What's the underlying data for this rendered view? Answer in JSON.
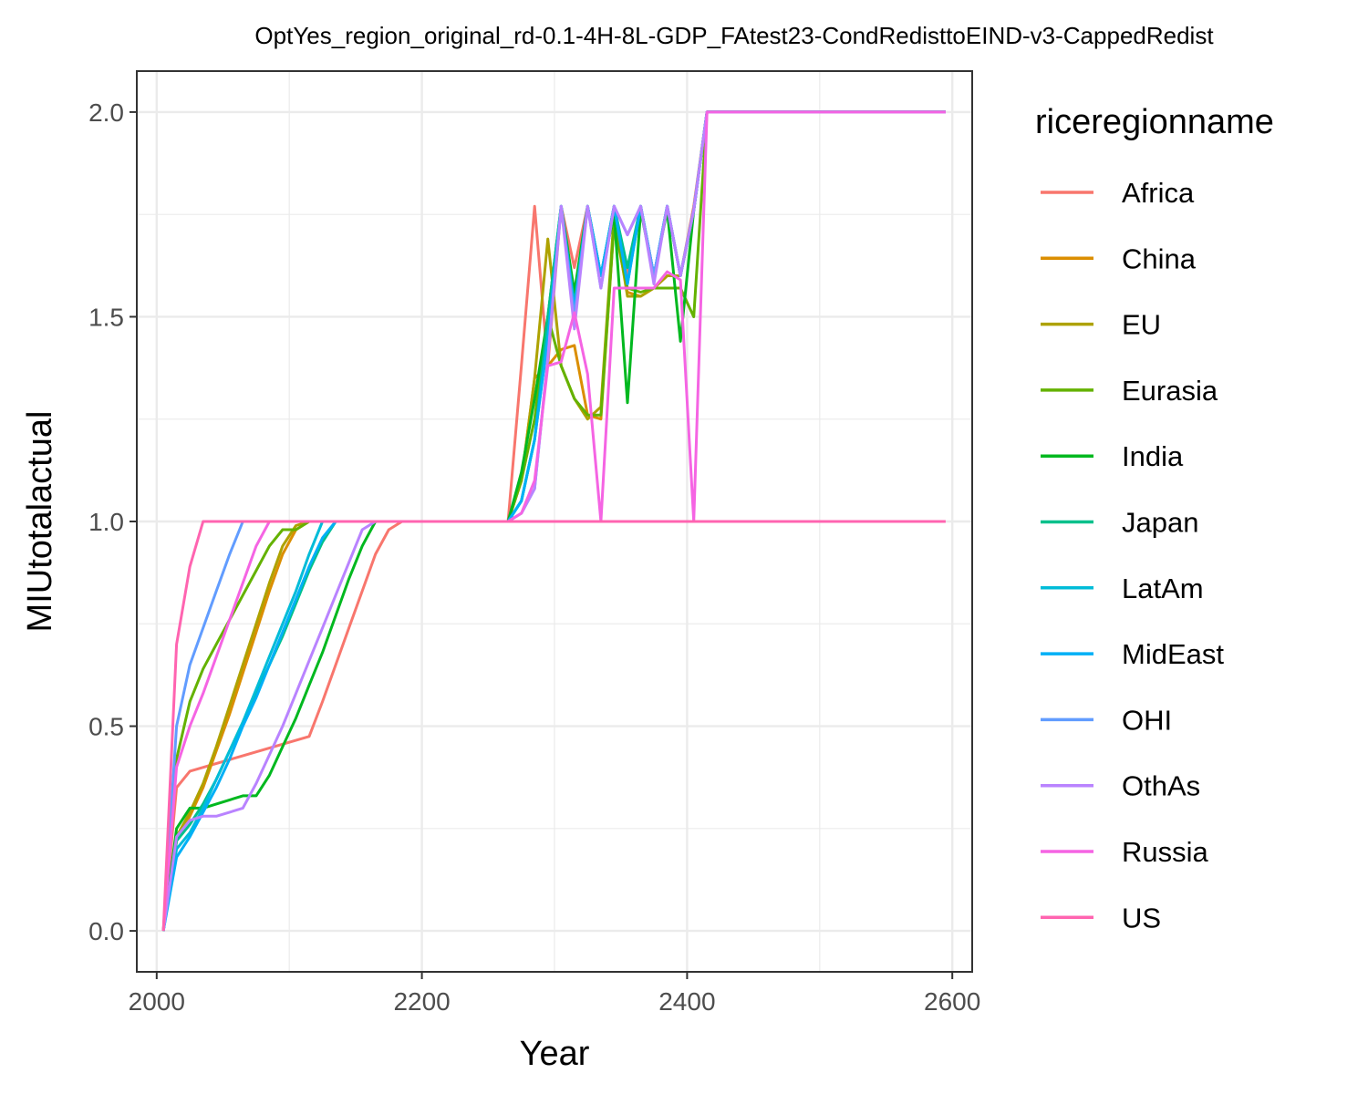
{
  "chart_data": {
    "type": "line",
    "title": "OptYes_region_original_rd-0.1-4H-8L-GDP_FAtest23-CondRedisttoEIND-v3-CappedRedist",
    "xlabel": "Year",
    "ylabel": "MIUtotalactual",
    "xlim": [
      1985,
      2615
    ],
    "ylim": [
      -0.1,
      2.1
    ],
    "x_ticks": [
      2000,
      2200,
      2400,
      2600
    ],
    "x_tick_labels": [
      "2000",
      "2200",
      "2400",
      "2600"
    ],
    "y_ticks": [
      0.0,
      0.5,
      1.0,
      1.5,
      2.0
    ],
    "y_tick_labels": [
      "0.0",
      "0.5",
      "1.0",
      "1.5",
      "2.0"
    ],
    "grid": true,
    "legend_title": "riceregionname",
    "legend_position": "right",
    "series": [
      {
        "name": "Africa",
        "color": "#F8766D",
        "x": [
          2005,
          2015,
          2025,
          2115,
          2125,
          2135,
          2145,
          2155,
          2165,
          2175,
          2185,
          2195,
          2265,
          2275,
          2285,
          2295,
          2305,
          2315,
          2325,
          2335,
          2345,
          2355,
          2365,
          2375,
          2385,
          2395,
          2405,
          2415,
          2595
        ],
        "y": [
          0.0,
          0.35,
          0.39,
          0.475,
          0.56,
          0.65,
          0.74,
          0.83,
          0.92,
          0.98,
          1.0,
          1.0,
          1.0,
          1.38,
          1.77,
          1.38,
          1.77,
          1.62,
          1.77,
          1.6,
          1.77,
          1.6,
          1.77,
          1.6,
          1.77,
          1.6,
          1.77,
          2.0,
          2.0
        ]
      },
      {
        "name": "China",
        "color": "#DB8E00",
        "x": [
          2005,
          2015,
          2025,
          2035,
          2045,
          2055,
          2065,
          2075,
          2085,
          2095,
          2105,
          2115,
          2125,
          2195,
          2265,
          2275,
          2285,
          2295,
          2305,
          2315,
          2325,
          2335,
          2345,
          2355,
          2365,
          2375,
          2385,
          2395,
          2405,
          2415,
          2595
        ],
        "y": [
          0.0,
          0.22,
          0.28,
          0.35,
          0.44,
          0.53,
          0.63,
          0.73,
          0.83,
          0.92,
          0.98,
          1.0,
          1.0,
          1.0,
          1.0,
          1.1,
          1.35,
          1.38,
          1.42,
          1.43,
          1.26,
          1.25,
          1.73,
          1.56,
          1.55,
          1.57,
          1.6,
          1.6,
          1.76,
          2.0,
          2.0
        ]
      },
      {
        "name": "EU",
        "color": "#AEA200",
        "x": [
          2005,
          2015,
          2025,
          2035,
          2045,
          2055,
          2065,
          2075,
          2085,
          2095,
          2105,
          2115,
          2195,
          2265,
          2275,
          2285,
          2295,
          2305,
          2315,
          2325,
          2335,
          2345,
          2355,
          2365,
          2375,
          2385,
          2395,
          2405,
          2415,
          2595
        ],
        "y": [
          0.0,
          0.23,
          0.29,
          0.36,
          0.45,
          0.55,
          0.65,
          0.75,
          0.85,
          0.94,
          0.99,
          1.0,
          1.0,
          1.0,
          1.1,
          1.35,
          1.69,
          1.38,
          1.3,
          1.25,
          1.28,
          1.75,
          1.55,
          1.55,
          1.57,
          1.6,
          1.6,
          1.76,
          2.0,
          2.0
        ]
      },
      {
        "name": "Eurasia",
        "color": "#64B200",
        "x": [
          2005,
          2015,
          2025,
          2035,
          2045,
          2055,
          2065,
          2075,
          2085,
          2095,
          2105,
          2115,
          2195,
          2265,
          2275,
          2285,
          2295,
          2305,
          2315,
          2325,
          2335,
          2345,
          2355,
          2365,
          2375,
          2385,
          2395,
          2405,
          2415,
          2595
        ],
        "y": [
          0.0,
          0.42,
          0.56,
          0.64,
          0.7,
          0.76,
          0.82,
          0.88,
          0.94,
          0.98,
          0.98,
          1.0,
          1.0,
          1.0,
          1.1,
          1.25,
          1.5,
          1.38,
          1.3,
          1.26,
          1.26,
          1.73,
          1.57,
          1.56,
          1.57,
          1.57,
          1.57,
          1.5,
          2.0,
          2.0
        ]
      },
      {
        "name": "India",
        "color": "#00B81F",
        "x": [
          2005,
          2015,
          2025,
          2035,
          2045,
          2055,
          2065,
          2075,
          2085,
          2095,
          2105,
          2115,
          2125,
          2135,
          2145,
          2155,
          2165,
          2175,
          2195,
          2265,
          2275,
          2285,
          2295,
          2305,
          2315,
          2325,
          2335,
          2345,
          2355,
          2365,
          2375,
          2385,
          2395,
          2405,
          2415,
          2595
        ],
        "y": [
          0.0,
          0.25,
          0.3,
          0.3,
          0.31,
          0.32,
          0.33,
          0.33,
          0.38,
          0.45,
          0.52,
          0.6,
          0.68,
          0.77,
          0.86,
          0.94,
          1.0,
          1.0,
          1.0,
          1.0,
          1.12,
          1.3,
          1.5,
          1.77,
          1.56,
          1.77,
          1.6,
          1.75,
          1.29,
          1.76,
          1.6,
          1.76,
          1.44,
          1.76,
          2.0,
          2.0
        ]
      },
      {
        "name": "Japan",
        "color": "#00C08B",
        "x": [
          2005,
          2015,
          2025,
          2035,
          2045,
          2055,
          2065,
          2075,
          2085,
          2095,
          2105,
          2115,
          2125,
          2135,
          2195,
          2265,
          2275,
          2285,
          2295,
          2305,
          2315,
          2325,
          2335,
          2345,
          2355,
          2365,
          2375,
          2385,
          2395,
          2405,
          2415,
          2595
        ],
        "y": [
          0.0,
          0.22,
          0.26,
          0.31,
          0.37,
          0.44,
          0.51,
          0.58,
          0.65,
          0.72,
          0.8,
          0.88,
          0.95,
          1.0,
          1.0,
          1.0,
          1.05,
          1.2,
          1.5,
          1.77,
          1.53,
          1.77,
          1.6,
          1.77,
          1.62,
          1.77,
          1.6,
          1.77,
          1.6,
          1.76,
          2.0,
          2.0
        ]
      },
      {
        "name": "LatAm",
        "color": "#00BCD8",
        "x": [
          2005,
          2015,
          2025,
          2035,
          2045,
          2055,
          2065,
          2075,
          2085,
          2095,
          2105,
          2115,
          2125,
          2135,
          2195,
          2265,
          2275,
          2285,
          2295,
          2305,
          2315,
          2325,
          2335,
          2345,
          2355,
          2365,
          2375,
          2385,
          2395,
          2405,
          2415,
          2595
        ],
        "y": [
          0.0,
          0.2,
          0.24,
          0.3,
          0.37,
          0.44,
          0.51,
          0.59,
          0.67,
          0.75,
          0.83,
          0.92,
          1.0,
          1.0,
          1.0,
          1.0,
          1.05,
          1.2,
          1.45,
          1.77,
          1.5,
          1.77,
          1.6,
          1.77,
          1.58,
          1.77,
          1.6,
          1.77,
          1.6,
          1.76,
          2.0,
          2.0
        ]
      },
      {
        "name": "MidEast",
        "color": "#00B0F6",
        "x": [
          2005,
          2015,
          2025,
          2035,
          2045,
          2055,
          2065,
          2075,
          2085,
          2095,
          2105,
          2115,
          2125,
          2135,
          2145,
          2195,
          2265,
          2275,
          2285,
          2295,
          2305,
          2315,
          2325,
          2335,
          2345,
          2355,
          2365,
          2375,
          2385,
          2395,
          2405,
          2415,
          2595
        ],
        "y": [
          0.0,
          0.18,
          0.23,
          0.29,
          0.35,
          0.42,
          0.5,
          0.57,
          0.65,
          0.73,
          0.81,
          0.89,
          0.96,
          1.0,
          1.0,
          1.0,
          1.0,
          1.05,
          1.2,
          1.45,
          1.77,
          1.52,
          1.77,
          1.6,
          1.77,
          1.58,
          1.77,
          1.6,
          1.77,
          1.6,
          1.76,
          2.0,
          2.0
        ]
      },
      {
        "name": "OHI",
        "color": "#619CFF",
        "x": [
          2005,
          2015,
          2025,
          2035,
          2045,
          2055,
          2065,
          2075,
          2195,
          2265,
          2275,
          2285,
          2295,
          2305,
          2315,
          2325,
          2335,
          2345,
          2355,
          2365,
          2375,
          2385,
          2395,
          2405,
          2415,
          2595
        ],
        "y": [
          0.0,
          0.5,
          0.65,
          0.74,
          0.83,
          0.92,
          1.0,
          1.0,
          1.0,
          1.0,
          1.02,
          1.08,
          1.4,
          1.77,
          1.5,
          1.77,
          1.57,
          1.77,
          1.7,
          1.77,
          1.6,
          1.77,
          1.6,
          1.76,
          2.0,
          2.0
        ]
      },
      {
        "name": "OthAs",
        "color": "#B983FF",
        "x": [
          2005,
          2015,
          2025,
          2035,
          2045,
          2055,
          2065,
          2075,
          2085,
          2095,
          2105,
          2115,
          2125,
          2135,
          2145,
          2155,
          2165,
          2195,
          2265,
          2275,
          2285,
          2295,
          2305,
          2315,
          2325,
          2335,
          2345,
          2355,
          2365,
          2375,
          2385,
          2395,
          2405,
          2415,
          2595
        ],
        "y": [
          0.0,
          0.23,
          0.27,
          0.28,
          0.28,
          0.29,
          0.3,
          0.36,
          0.43,
          0.5,
          0.58,
          0.66,
          0.74,
          0.82,
          0.9,
          0.98,
          1.0,
          1.0,
          1.0,
          1.02,
          1.08,
          1.4,
          1.77,
          1.47,
          1.77,
          1.57,
          1.77,
          1.7,
          1.77,
          1.58,
          1.77,
          1.6,
          1.76,
          2.0,
          2.0
        ]
      },
      {
        "name": "Russia",
        "color": "#F564E3",
        "x": [
          2005,
          2015,
          2025,
          2035,
          2045,
          2055,
          2065,
          2075,
          2085,
          2095,
          2195,
          2265,
          2275,
          2285,
          2295,
          2305,
          2315,
          2325,
          2335,
          2345,
          2355,
          2365,
          2375,
          2385,
          2395,
          2405,
          2415,
          2595
        ],
        "y": [
          0.0,
          0.4,
          0.5,
          0.58,
          0.67,
          0.76,
          0.85,
          0.94,
          1.0,
          1.0,
          1.0,
          1.0,
          1.02,
          1.1,
          1.38,
          1.39,
          1.51,
          1.36,
          1.0,
          1.57,
          1.57,
          1.57,
          1.57,
          1.61,
          1.59,
          1.0,
          2.0,
          2.0
        ]
      },
      {
        "name": "US",
        "color": "#FF64B0",
        "x": [
          2005,
          2015,
          2025,
          2035,
          2195,
          2265,
          2275,
          2285,
          2295,
          2305,
          2315,
          2325,
          2335,
          2345,
          2355,
          2365,
          2375,
          2385,
          2395,
          2405,
          2415,
          2595
        ],
        "y": [
          0.0,
          0.7,
          0.89,
          1.0,
          1.0,
          1.0,
          1.0,
          1.0,
          1.0,
          1.0,
          1.0,
          1.0,
          1.0,
          1.0,
          1.0,
          1.0,
          1.0,
          1.0,
          1.0,
          1.0,
          1.0,
          1.0
        ]
      }
    ]
  }
}
